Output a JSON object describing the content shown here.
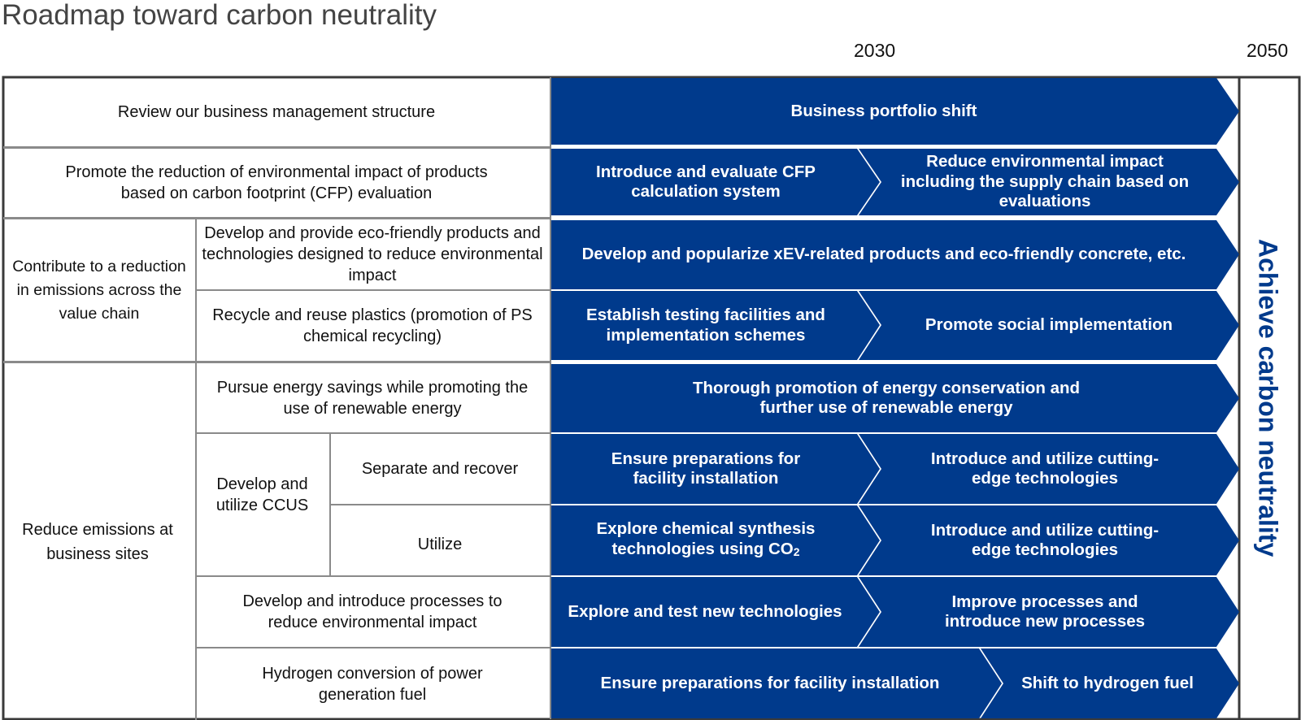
{
  "title": "Roadmap toward carbon neutrality",
  "years": {
    "y2030": "2030",
    "y2050": "2050"
  },
  "goal": "Achieve carbon neutrality",
  "colors": {
    "arrow": "#003a8c",
    "goal_text": "#003a8c",
    "grid": "#8a8a8a"
  },
  "groups": {
    "value_chain": "Contribute to a reduction in emissions across the value chain",
    "business_sites": "Reduce emissions at business sites",
    "ccus": "Develop and utilize CCUS"
  },
  "rows": [
    {
      "label": "Review our business management structure",
      "actions": [
        "Business portfolio shift"
      ]
    },
    {
      "label": "Promote the reduction of environmental impact of products based on carbon footprint (CFP) evaluation",
      "actions": [
        "Introduce and evaluate CFP calculation system",
        "Reduce environmental impact including the supply chain based on evaluations"
      ]
    },
    {
      "label": "Develop and provide eco-friendly products and technologies designed to reduce environmental impact",
      "actions": [
        "Develop and popularize xEV-related products and eco-friendly concrete, etc."
      ]
    },
    {
      "label": "Recycle and reuse plastics (promotion of PS chemical recycling)",
      "actions": [
        "Establish testing facilities and implementation schemes",
        "Promote social implementation"
      ]
    },
    {
      "label": "Pursue energy savings while promoting the use of renewable energy",
      "actions": [
        "Thorough promotion of energy conservation and further use of renewable energy"
      ]
    },
    {
      "label": "Separate and recover",
      "actions": [
        "Ensure preparations for facility installation",
        "Introduce and utilize cutting-edge technologies"
      ]
    },
    {
      "label": "Utilize",
      "actions": [
        "Explore chemical synthesis technologies using CO",
        "2",
        "Introduce and utilize cutting-edge technologies"
      ]
    },
    {
      "label": "Develop and introduce processes to reduce environmental impact",
      "actions": [
        "Explore and test new technologies",
        "Improve processes and introduce new processes"
      ]
    },
    {
      "label": "Hydrogen conversion of power generation fuel",
      "actions": [
        "Ensure preparations for facility installation",
        "Shift to hydrogen fuel"
      ]
    }
  ]
}
